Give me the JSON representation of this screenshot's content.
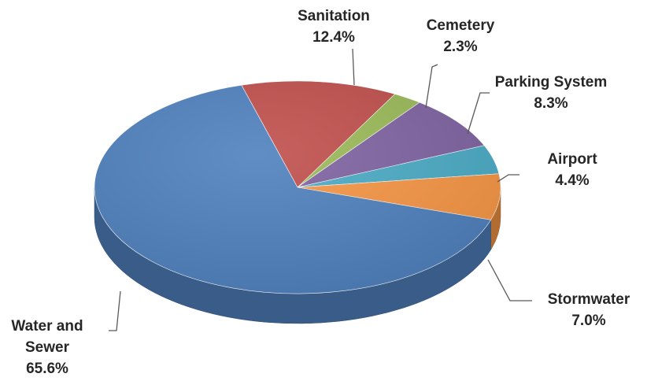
{
  "chart_data": {
    "type": "pie",
    "title": "",
    "three_d": true,
    "slices": [
      {
        "label_lines": [
          "Sanitation"
        ],
        "pct_label": "12.4%",
        "value": 12.4,
        "color": "#c0504d"
      },
      {
        "label_lines": [
          "Cemetery"
        ],
        "pct_label": "2.3%",
        "value": 2.3,
        "color": "#9bbb59"
      },
      {
        "label_lines": [
          "Parking System"
        ],
        "pct_label": "8.3%",
        "value": 8.3,
        "color": "#8064a2"
      },
      {
        "label_lines": [
          "Airport"
        ],
        "pct_label": "4.4%",
        "value": 4.4,
        "color": "#4bacc6"
      },
      {
        "label_lines": [
          "Stormwater"
        ],
        "pct_label": "7.0%",
        "value": 7.0,
        "color": "#f79646"
      },
      {
        "label_lines": [
          "Water and",
          "Sewer"
        ],
        "pct_label": "65.6%",
        "value": 65.6,
        "color": "#4f81bd"
      }
    ]
  }
}
